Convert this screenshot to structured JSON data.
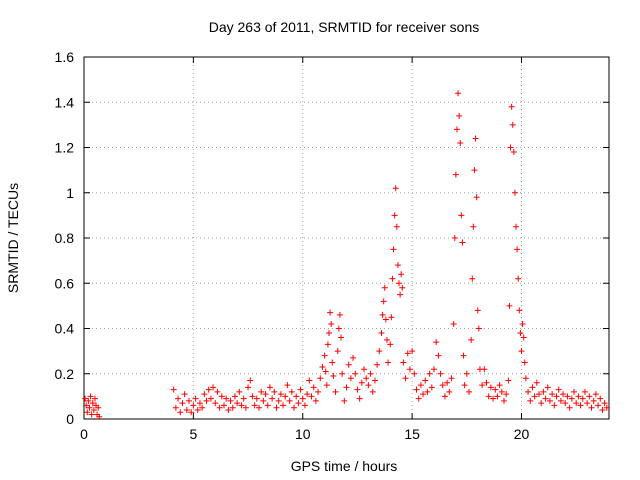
{
  "chart_data": {
    "type": "scatter",
    "title": "Day 263 of 2011, SRMTID for receiver sons",
    "xlabel": "GPS time / hours",
    "ylabel": "SRMTID / TECUs",
    "xlim": [
      0,
      24
    ],
    "ylim": [
      0,
      1.6
    ],
    "xticks": [
      0,
      5,
      10,
      15,
      20
    ],
    "yticks": [
      0,
      0.2,
      0.4,
      0.6,
      0.8,
      1,
      1.2,
      1.4,
      1.6
    ],
    "xtick_labels": [
      "0",
      "5",
      "10",
      "15",
      "20"
    ],
    "ytick_labels": [
      "0",
      "0.2",
      "0.4",
      "0.6",
      "0.8",
      "1",
      "1.2",
      "1.4",
      "1.6"
    ],
    "grid": true,
    "marker": "+",
    "color": "#ff0000",
    "series": [
      {
        "name": "SRMTID",
        "points": [
          [
            0.05,
            0.09
          ],
          [
            0.1,
            0.06
          ],
          [
            0.15,
            0.03
          ],
          [
            0.2,
            0.08
          ],
          [
            0.25,
            0.05
          ],
          [
            0.3,
            0.1
          ],
          [
            0.35,
            0.02
          ],
          [
            0.4,
            0.07
          ],
          [
            0.45,
            0.04
          ],
          [
            0.5,
            0.09
          ],
          [
            0.55,
            0.06
          ],
          [
            0.6,
            0.02
          ],
          [
            0.65,
            0.05
          ],
          [
            0.7,
            0.01
          ],
          [
            4.1,
            0.13
          ],
          [
            4.2,
            0.05
          ],
          [
            4.3,
            0.09
          ],
          [
            4.4,
            0.03
          ],
          [
            4.5,
            0.07
          ],
          [
            4.6,
            0.11
          ],
          [
            4.7,
            0.04
          ],
          [
            4.8,
            0.08
          ],
          [
            4.9,
            0.03
          ],
          [
            5.0,
            0.06
          ],
          [
            5.1,
            0.09
          ],
          [
            5.2,
            0.04
          ],
          [
            5.3,
            0.07
          ],
          [
            5.4,
            0.05
          ],
          [
            5.5,
            0.11
          ],
          [
            5.6,
            0.08
          ],
          [
            5.7,
            0.13
          ],
          [
            5.8,
            0.09
          ],
          [
            5.9,
            0.14
          ],
          [
            6.0,
            0.07
          ],
          [
            6.1,
            0.12
          ],
          [
            6.2,
            0.05
          ],
          [
            6.3,
            0.1
          ],
          [
            6.4,
            0.06
          ],
          [
            6.5,
            0.09
          ],
          [
            6.6,
            0.04
          ],
          [
            6.7,
            0.08
          ],
          [
            6.8,
            0.05
          ],
          [
            6.9,
            0.1
          ],
          [
            7.0,
            0.07
          ],
          [
            7.1,
            0.12
          ],
          [
            7.2,
            0.06
          ],
          [
            7.3,
            0.09
          ],
          [
            7.4,
            0.05
          ],
          [
            7.5,
            0.14
          ],
          [
            7.6,
            0.17
          ],
          [
            7.7,
            0.1
          ],
          [
            7.8,
            0.06
          ],
          [
            7.9,
            0.09
          ],
          [
            8.0,
            0.05
          ],
          [
            8.1,
            0.12
          ],
          [
            8.2,
            0.08
          ],
          [
            8.3,
            0.11
          ],
          [
            8.4,
            0.06
          ],
          [
            8.5,
            0.14
          ],
          [
            8.6,
            0.09
          ],
          [
            8.7,
            0.12
          ],
          [
            8.8,
            0.05
          ],
          [
            8.9,
            0.08
          ],
          [
            9.0,
            0.11
          ],
          [
            9.1,
            0.06
          ],
          [
            9.2,
            0.1
          ],
          [
            9.3,
            0.15
          ],
          [
            9.4,
            0.08
          ],
          [
            9.5,
            0.12
          ],
          [
            9.6,
            0.05
          ],
          [
            9.7,
            0.1
          ],
          [
            9.8,
            0.07
          ],
          [
            9.9,
            0.13
          ],
          [
            10.0,
            0.09
          ],
          [
            10.1,
            0.06
          ],
          [
            10.2,
            0.11
          ],
          [
            10.3,
            0.17
          ],
          [
            10.4,
            0.1
          ],
          [
            10.5,
            0.14
          ],
          [
            10.6,
            0.08
          ],
          [
            10.7,
            0.12
          ],
          [
            10.8,
            0.18
          ],
          [
            10.9,
            0.23
          ],
          [
            11.0,
            0.28
          ],
          [
            11.05,
            0.21
          ],
          [
            11.1,
            0.15
          ],
          [
            11.15,
            0.33
          ],
          [
            11.2,
            0.38
          ],
          [
            11.25,
            0.47
          ],
          [
            11.3,
            0.42
          ],
          [
            11.35,
            0.25
          ],
          [
            11.4,
            0.19
          ],
          [
            11.5,
            0.12
          ],
          [
            11.6,
            0.3
          ],
          [
            11.65,
            0.4
          ],
          [
            11.7,
            0.46
          ],
          [
            11.75,
            0.36
          ],
          [
            11.8,
            0.2
          ],
          [
            11.9,
            0.08
          ],
          [
            12.0,
            0.14
          ],
          [
            12.1,
            0.24
          ],
          [
            12.2,
            0.18
          ],
          [
            12.3,
            0.27
          ],
          [
            12.4,
            0.2
          ],
          [
            12.5,
            0.13
          ],
          [
            12.6,
            0.09
          ],
          [
            12.7,
            0.16
          ],
          [
            12.8,
            0.22
          ],
          [
            12.9,
            0.18
          ],
          [
            13.0,
            0.15
          ],
          [
            13.1,
            0.2
          ],
          [
            13.2,
            0.12
          ],
          [
            13.3,
            0.17
          ],
          [
            13.4,
            0.24
          ],
          [
            13.5,
            0.3
          ],
          [
            13.6,
            0.38
          ],
          [
            13.65,
            0.46
          ],
          [
            13.7,
            0.52
          ],
          [
            13.75,
            0.58
          ],
          [
            13.8,
            0.44
          ],
          [
            13.85,
            0.35
          ],
          [
            13.9,
            0.25
          ],
          [
            14.0,
            0.33
          ],
          [
            14.05,
            0.45
          ],
          [
            14.1,
            0.62
          ],
          [
            14.15,
            0.75
          ],
          [
            14.2,
            0.9
          ],
          [
            14.25,
            1.02
          ],
          [
            14.3,
            0.85
          ],
          [
            14.35,
            0.68
          ],
          [
            14.4,
            0.6
          ],
          [
            14.45,
            0.55
          ],
          [
            14.5,
            0.64
          ],
          [
            14.55,
            0.58
          ],
          [
            14.6,
            0.25
          ],
          [
            14.7,
            0.18
          ],
          [
            14.8,
            0.29
          ],
          [
            14.9,
            0.22
          ],
          [
            15.0,
            0.3
          ],
          [
            15.1,
            0.2
          ],
          [
            15.2,
            0.13
          ],
          [
            15.3,
            0.09
          ],
          [
            15.4,
            0.15
          ],
          [
            15.5,
            0.11
          ],
          [
            15.6,
            0.17
          ],
          [
            15.7,
            0.12
          ],
          [
            15.8,
            0.2
          ],
          [
            15.9,
            0.14
          ],
          [
            16.0,
            0.22
          ],
          [
            16.1,
            0.34
          ],
          [
            16.2,
            0.28
          ],
          [
            16.3,
            0.2
          ],
          [
            16.4,
            0.15
          ],
          [
            16.5,
            0.1
          ],
          [
            16.6,
            0.16
          ],
          [
            16.7,
            0.12
          ],
          [
            16.8,
            0.18
          ],
          [
            16.9,
            0.42
          ],
          [
            16.95,
            0.8
          ],
          [
            17.0,
            1.08
          ],
          [
            17.05,
            1.28
          ],
          [
            17.1,
            1.44
          ],
          [
            17.15,
            1.34
          ],
          [
            17.2,
            1.22
          ],
          [
            17.25,
            0.9
          ],
          [
            17.3,
            0.78
          ],
          [
            17.35,
            0.28
          ],
          [
            17.4,
            0.15
          ],
          [
            17.5,
            0.2
          ],
          [
            17.6,
            0.12
          ],
          [
            17.7,
            0.35
          ],
          [
            17.75,
            0.62
          ],
          [
            17.8,
            0.85
          ],
          [
            17.85,
            1.1
          ],
          [
            17.9,
            1.24
          ],
          [
            17.95,
            0.98
          ],
          [
            18.0,
            0.48
          ],
          [
            18.05,
            0.4
          ],
          [
            18.1,
            0.22
          ],
          [
            18.2,
            0.15
          ],
          [
            18.3,
            0.22
          ],
          [
            18.4,
            0.16
          ],
          [
            18.5,
            0.1
          ],
          [
            18.6,
            0.14
          ],
          [
            18.7,
            0.09
          ],
          [
            18.8,
            0.13
          ],
          [
            18.9,
            0.1
          ],
          [
            19.0,
            0.15
          ],
          [
            19.1,
            0.12
          ],
          [
            19.2,
            0.08
          ],
          [
            19.3,
            0.11
          ],
          [
            19.4,
            0.17
          ],
          [
            19.45,
            0.5
          ],
          [
            19.5,
            1.2
          ],
          [
            19.55,
            1.38
          ],
          [
            19.6,
            1.3
          ],
          [
            19.65,
            1.18
          ],
          [
            19.7,
            1.0
          ],
          [
            19.75,
            0.85
          ],
          [
            19.8,
            0.75
          ],
          [
            19.85,
            0.62
          ],
          [
            19.9,
            0.48
          ],
          [
            19.95,
            0.38
          ],
          [
            20.0,
            0.3
          ],
          [
            20.05,
            0.42
          ],
          [
            20.1,
            0.36
          ],
          [
            20.15,
            0.25
          ],
          [
            20.2,
            0.18
          ],
          [
            20.3,
            0.12
          ],
          [
            20.4,
            0.08
          ],
          [
            20.5,
            0.14
          ],
          [
            20.6,
            0.1
          ],
          [
            20.7,
            0.16
          ],
          [
            20.8,
            0.11
          ],
          [
            20.9,
            0.07
          ],
          [
            21.0,
            0.12
          ],
          [
            21.1,
            0.09
          ],
          [
            21.2,
            0.14
          ],
          [
            21.3,
            0.08
          ],
          [
            21.4,
            0.11
          ],
          [
            21.5,
            0.06
          ],
          [
            21.6,
            0.1
          ],
          [
            21.7,
            0.13
          ],
          [
            21.8,
            0.08
          ],
          [
            21.9,
            0.11
          ],
          [
            22.0,
            0.07
          ],
          [
            22.1,
            0.1
          ],
          [
            22.2,
            0.05
          ],
          [
            22.3,
            0.09
          ],
          [
            22.4,
            0.12
          ],
          [
            22.5,
            0.07
          ],
          [
            22.6,
            0.1
          ],
          [
            22.7,
            0.06
          ],
          [
            22.8,
            0.09
          ],
          [
            22.9,
            0.12
          ],
          [
            23.0,
            0.07
          ],
          [
            23.1,
            0.1
          ],
          [
            23.2,
            0.05
          ],
          [
            23.3,
            0.08
          ],
          [
            23.4,
            0.11
          ],
          [
            23.5,
            0.06
          ],
          [
            23.6,
            0.09
          ],
          [
            23.7,
            0.04
          ],
          [
            23.8,
            0.07
          ],
          [
            23.9,
            0.05
          ]
        ]
      }
    ]
  }
}
